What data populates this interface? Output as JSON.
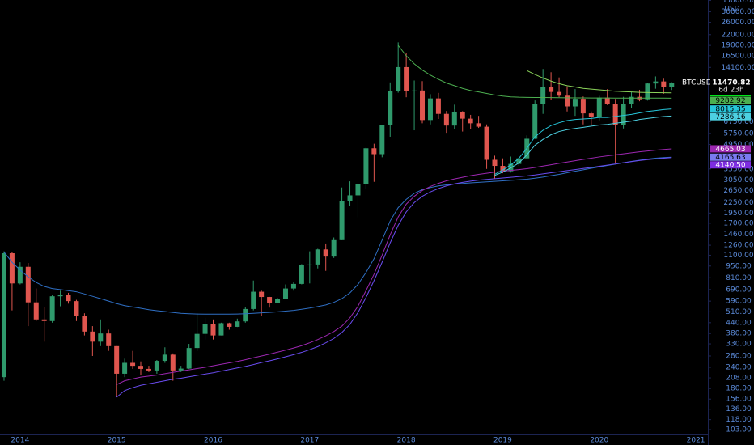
{
  "chart_data": {
    "type": "candlestick",
    "symbol": "BTCUSD",
    "currency": "USD",
    "y_scale": "log",
    "grid": false,
    "up_color": "#2f9a6c",
    "down_color": "#e0564f",
    "categories": [
      null,
      null,
      "2014",
      null,
      null,
      null,
      null,
      null,
      null,
      null,
      null,
      null,
      null,
      null,
      "2015",
      null,
      null,
      null,
      null,
      null,
      null,
      null,
      null,
      null,
      null,
      null,
      "2016",
      null,
      null,
      null,
      null,
      null,
      null,
      null,
      null,
      null,
      null,
      null,
      "2017",
      null,
      null,
      null,
      null,
      null,
      null,
      null,
      null,
      null,
      null,
      null,
      "2018",
      null,
      null,
      null,
      null,
      null,
      null,
      null,
      null,
      null,
      null,
      null,
      "2019",
      null,
      null,
      null,
      null,
      null,
      null,
      null,
      null,
      null,
      null,
      null,
      "2020",
      null,
      null,
      null,
      null,
      null,
      null,
      null,
      null,
      null,
      null,
      null,
      "2021",
      null
    ],
    "open": [
      210,
      1130,
      750,
      940,
      580,
      460,
      450,
      630,
      640,
      590,
      480,
      390,
      340,
      380,
      320,
      220,
      255,
      245,
      235,
      230,
      262,
      285,
      230,
      236,
      312,
      378,
      430,
      370,
      437,
      416,
      448,
      530,
      670,
      624,
      575,
      610,
      700,
      745,
      965,
      970,
      1190,
      1080,
      1350,
      2300,
      2480,
      2875,
      4700,
      4340,
      6450,
      10200,
      14150,
      10200,
      10300,
      6900,
      9250,
      7500,
      6400,
      7730,
      7030,
      6600,
      6300,
      4020,
      3700,
      3440,
      3800,
      4100,
      5350,
      8550,
      10800,
      10100,
      9600,
      8300,
      9200,
      7550,
      7200,
      9350,
      8550,
      6430,
      8620,
      9450,
      9140,
      11330,
      11650,
      10780,
      null,
      null,
      null,
      null
    ],
    "high": [
      1160,
      1150,
      1000,
      990,
      700,
      545,
      640,
      680,
      660,
      600,
      500,
      420,
      460,
      400,
      320,
      270,
      300,
      260,
      245,
      265,
      315,
      290,
      245,
      330,
      500,
      470,
      460,
      440,
      440,
      465,
      545,
      780,
      680,
      625,
      615,
      740,
      760,
      975,
      1160,
      1200,
      1290,
      1400,
      2760,
      3000,
      2920,
      4750,
      5000,
      6450,
      11500,
      19800,
      17200,
      11800,
      11700,
      9800,
      9970,
      7800,
      8500,
      7780,
      7400,
      7300,
      6500,
      4250,
      4100,
      4200,
      4130,
      5600,
      9000,
      13800,
      13200,
      12300,
      10900,
      10500,
      9500,
      7750,
      9580,
      10500,
      9190,
      9450,
      10080,
      10400,
      11450,
      12470,
      12090,
      11530,
      null,
      null,
      null,
      null
    ],
    "low": [
      200,
      520,
      740,
      420,
      450,
      340,
      440,
      550,
      570,
      450,
      370,
      280,
      320,
      300,
      160,
      210,
      235,
      215,
      225,
      220,
      255,
      200,
      225,
      235,
      300,
      350,
      350,
      370,
      400,
      415,
      440,
      520,
      480,
      540,
      575,
      605,
      680,
      740,
      750,
      920,
      890,
      1060,
      1350,
      2150,
      1840,
      2720,
      2980,
      4160,
      5500,
      10000,
      9400,
      6000,
      6600,
      6500,
      7000,
      5800,
      6100,
      5900,
      6130,
      6200,
      3550,
      3120,
      3350,
      3380,
      3700,
      4080,
      5330,
      7500,
      9100,
      9400,
      7750,
      7300,
      6500,
      6430,
      6870,
      8450,
      3850,
      6150,
      8100,
      8900,
      8980,
      10550,
      9850,
      10370,
      null,
      null,
      null,
      null
    ],
    "close": [
      1130,
      750,
      940,
      580,
      460,
      450,
      630,
      640,
      590,
      480,
      390,
      340,
      380,
      320,
      220,
      255,
      245,
      235,
      230,
      262,
      285,
      230,
      236,
      312,
      378,
      430,
      370,
      437,
      416,
      448,
      530,
      670,
      624,
      575,
      610,
      700,
      745,
      965,
      970,
      1190,
      1080,
      1350,
      2300,
      2480,
      2875,
      4700,
      4340,
      6450,
      10200,
      14150,
      10200,
      10300,
      6900,
      9250,
      7500,
      6400,
      7730,
      7030,
      6600,
      6300,
      4020,
      3700,
      3440,
      3800,
      4100,
      5350,
      8550,
      10800,
      10100,
      9600,
      8300,
      9200,
      7550,
      7200,
      9350,
      8550,
      6430,
      8620,
      9450,
      9140,
      11330,
      11650,
      10780,
      11470.82,
      null,
      null,
      null,
      null
    ],
    "indicators": [
      {
        "color": "#2f6fc4",
        "values": [
          1150,
          1000,
          900,
          820,
          760,
          720,
          700,
          690,
          680,
          670,
          650,
          630,
          610,
          590,
          570,
          555,
          545,
          535,
          525,
          518,
          512,
          505,
          500,
          497,
          495,
          494,
          494,
          494,
          494,
          495,
          497,
          500,
          503,
          506,
          510,
          515,
          520,
          528,
          537,
          548,
          560,
          580,
          610,
          660,
          740,
          870,
          1050,
          1350,
          1750,
          2100,
          2350,
          2550,
          2680,
          2760,
          2820,
          2860,
          2890,
          2915,
          2940,
          2960,
          2980,
          3000,
          3020,
          3040,
          3065,
          3090,
          3130,
          3180,
          3240,
          3300,
          3370,
          3440,
          3510,
          3580,
          3650,
          3720,
          3790,
          3860,
          3930,
          4000,
          4060,
          4110,
          4140,
          4165.63,
          null,
          null,
          null,
          null
        ]
      },
      {
        "color": "#9c27b0",
        "values": [
          null,
          null,
          null,
          null,
          null,
          null,
          null,
          null,
          null,
          null,
          null,
          null,
          null,
          null,
          190,
          200,
          205,
          210,
          213,
          216,
          220,
          224,
          228,
          232,
          236,
          240,
          245,
          250,
          255,
          260,
          266,
          273,
          280,
          287,
          295,
          303,
          312,
          322,
          335,
          350,
          368,
          390,
          420,
          470,
          550,
          680,
          850,
          1100,
          1450,
          1850,
          2200,
          2450,
          2650,
          2800,
          2920,
          3020,
          3100,
          3170,
          3240,
          3300,
          3350,
          3400,
          3440,
          3480,
          3520,
          3560,
          3620,
          3690,
          3760,
          3830,
          3900,
          3970,
          4040,
          4110,
          4180,
          4240,
          4300,
          4360,
          4420,
          4480,
          4530,
          4580,
          4625,
          4665.03,
          null,
          null,
          null,
          null
        ]
      },
      {
        "color": "#6a4cf0",
        "values": [
          null,
          null,
          null,
          null,
          null,
          null,
          null,
          null,
          null,
          null,
          null,
          null,
          null,
          null,
          160,
          175,
          182,
          188,
          192,
          196,
          200,
          204,
          207,
          211,
          215,
          219,
          223,
          228,
          233,
          238,
          243,
          249,
          256,
          262,
          269,
          277,
          285,
          294,
          305,
          318,
          335,
          355,
          385,
          430,
          505,
          620,
          780,
          1000,
          1300,
          1650,
          1980,
          2250,
          2450,
          2600,
          2720,
          2820,
          2900,
          2960,
          3010,
          3050,
          3080,
          3110,
          3140,
          3170,
          3200,
          3230,
          3270,
          3320,
          3370,
          3420,
          3470,
          3520,
          3570,
          3620,
          3680,
          3740,
          3800,
          3860,
          3920,
          3980,
          4030,
          4070,
          4110,
          4140.5,
          null,
          null,
          null,
          null
        ]
      },
      {
        "color": "#4caf50",
        "values": [
          null,
          null,
          null,
          null,
          null,
          null,
          null,
          null,
          null,
          null,
          null,
          null,
          null,
          null,
          null,
          null,
          null,
          null,
          null,
          null,
          null,
          null,
          null,
          null,
          null,
          null,
          null,
          null,
          null,
          null,
          null,
          null,
          null,
          null,
          null,
          null,
          null,
          null,
          null,
          null,
          null,
          null,
          null,
          null,
          null,
          null,
          null,
          null,
          null,
          19000,
          16500,
          14800,
          13600,
          12700,
          12000,
          11400,
          11000,
          10600,
          10300,
          10100,
          9900,
          9700,
          9550,
          9450,
          9400,
          9380,
          9370,
          9360,
          9350,
          9340,
          9330,
          9320,
          9310,
          9300,
          9300,
          9300,
          9295,
          9290,
          9290,
          9285,
          9285,
          9283,
          9283,
          9282.92,
          null,
          null,
          null,
          null
        ]
      },
      {
        "color": "#8bd45a",
        "values": [
          null,
          null,
          null,
          null,
          null,
          null,
          null,
          null,
          null,
          null,
          null,
          null,
          null,
          null,
          null,
          null,
          null,
          null,
          null,
          null,
          null,
          null,
          null,
          null,
          null,
          null,
          null,
          null,
          null,
          null,
          null,
          null,
          null,
          null,
          null,
          null,
          null,
          null,
          null,
          null,
          null,
          null,
          null,
          null,
          null,
          null,
          null,
          null,
          null,
          null,
          null,
          null,
          null,
          null,
          null,
          null,
          null,
          null,
          null,
          null,
          null,
          null,
          null,
          null,
          null,
          13500,
          12800,
          12200,
          11700,
          11300,
          11000,
          10800,
          10600,
          10500,
          10400,
          10300,
          10200,
          10150,
          10100,
          10050,
          10020,
          10000,
          9990,
          9983.98,
          null,
          null,
          null,
          null
        ]
      },
      {
        "color": "#26c6da",
        "values": [
          null,
          null,
          null,
          null,
          null,
          null,
          null,
          null,
          null,
          null,
          null,
          null,
          null,
          null,
          null,
          null,
          null,
          null,
          null,
          null,
          null,
          null,
          null,
          null,
          null,
          null,
          null,
          null,
          null,
          null,
          null,
          null,
          null,
          null,
          null,
          null,
          null,
          null,
          null,
          null,
          null,
          null,
          null,
          null,
          null,
          null,
          null,
          null,
          null,
          null,
          null,
          null,
          null,
          null,
          null,
          null,
          null,
          null,
          null,
          null,
          null,
          3300,
          3500,
          3750,
          4100,
          4700,
          5500,
          6000,
          6400,
          6650,
          6850,
          6950,
          7000,
          7050,
          7150,
          7150,
          7250,
          7350,
          7450,
          7600,
          7750,
          7850,
          7950,
          8015.35,
          null,
          null,
          null,
          null
        ]
      },
      {
        "color": "#4dd0e1",
        "values": [
          null,
          null,
          null,
          null,
          null,
          null,
          null,
          null,
          null,
          null,
          null,
          null,
          null,
          null,
          null,
          null,
          null,
          null,
          null,
          null,
          null,
          null,
          null,
          null,
          null,
          null,
          null,
          null,
          null,
          null,
          null,
          null,
          null,
          null,
          null,
          null,
          null,
          null,
          null,
          null,
          null,
          null,
          null,
          null,
          null,
          null,
          null,
          null,
          null,
          null,
          null,
          null,
          null,
          null,
          null,
          null,
          null,
          null,
          null,
          null,
          null,
          3250,
          3400,
          3600,
          3850,
          4300,
          4900,
          5300,
          5650,
          5900,
          6050,
          6150,
          6250,
          6350,
          6450,
          6500,
          6600,
          6700,
          6800,
          6950,
          7050,
          7150,
          7230,
          7286.16,
          null,
          null,
          null,
          null
        ]
      }
    ],
    "last_price": {
      "value": 11470.82,
      "countdown": "6d 23h"
    },
    "price_labels": [
      {
        "value": 9983.98,
        "label": "9983.98",
        "color": "#00e61a",
        "text_color": "#000"
      },
      {
        "value": 9282.92,
        "label": "9282.92",
        "color": "#4caf50",
        "text_color": "#000"
      },
      {
        "value": 8015.35,
        "label": "8015.35",
        "color": "#26c6da",
        "text_color": "#000"
      },
      {
        "value": 7286.16,
        "label": "7286.16",
        "color": "#4dd0e1",
        "text_color": "#000"
      },
      {
        "value": 4665.03,
        "label": "4665.03",
        "color": "#9c27b0",
        "text_color": "#fff"
      },
      {
        "value": 4165.63,
        "label": "4165.63",
        "color": "#7a7af0",
        "text_color": "#000"
      },
      {
        "value": 4140.5,
        "label": "4140.50",
        "color": "#7d2de0",
        "text_color": "#fff"
      }
    ],
    "ylim": [
      83.6,
      35200
    ],
    "yticks": [
      {
        "value": 35000,
        "label": "35000.00"
      },
      {
        "value": 30000,
        "label": "30000.00"
      },
      {
        "value": 26000,
        "label": "26000.00"
      },
      {
        "value": 22000,
        "label": "22000.00"
      },
      {
        "value": 19000,
        "label": "19000.00"
      },
      {
        "value": 16500,
        "label": "16500.00"
      },
      {
        "value": 14100,
        "label": "14100.00"
      },
      {
        "value": 6750,
        "label": "6750.00"
      },
      {
        "value": 5750,
        "label": "5750.00"
      },
      {
        "value": 4950,
        "label": "4950.00"
      },
      {
        "value": 3550,
        "label": "3550.00"
      },
      {
        "value": 3050,
        "label": "3050.00"
      },
      {
        "value": 2650,
        "label": "2650.00"
      },
      {
        "value": 2250,
        "label": "2250.00"
      },
      {
        "value": 1950,
        "label": "1950.00"
      },
      {
        "value": 1700,
        "label": "1700.00"
      },
      {
        "value": 1460,
        "label": "1460.00"
      },
      {
        "value": 1260,
        "label": "1260.00"
      },
      {
        "value": 1100,
        "label": "1100.00"
      },
      {
        "value": 950,
        "label": "950.00"
      },
      {
        "value": 810,
        "label": "810.00"
      },
      {
        "value": 690,
        "label": "690.00"
      },
      {
        "value": 590,
        "label": "590.00"
      },
      {
        "value": 510,
        "label": "510.00"
      },
      {
        "value": 440,
        "label": "440.00"
      },
      {
        "value": 380,
        "label": "380.00"
      },
      {
        "value": 330,
        "label": "330.00"
      },
      {
        "value": 280,
        "label": "280.00"
      },
      {
        "value": 240,
        "label": "240.00"
      },
      {
        "value": 208,
        "label": "208.00"
      },
      {
        "value": 180,
        "label": "180.00"
      },
      {
        "value": 156,
        "label": "156.00"
      },
      {
        "value": 136,
        "label": "136.00"
      },
      {
        "value": 118,
        "label": "118.00"
      },
      {
        "value": 103,
        "label": "103.00"
      }
    ]
  }
}
